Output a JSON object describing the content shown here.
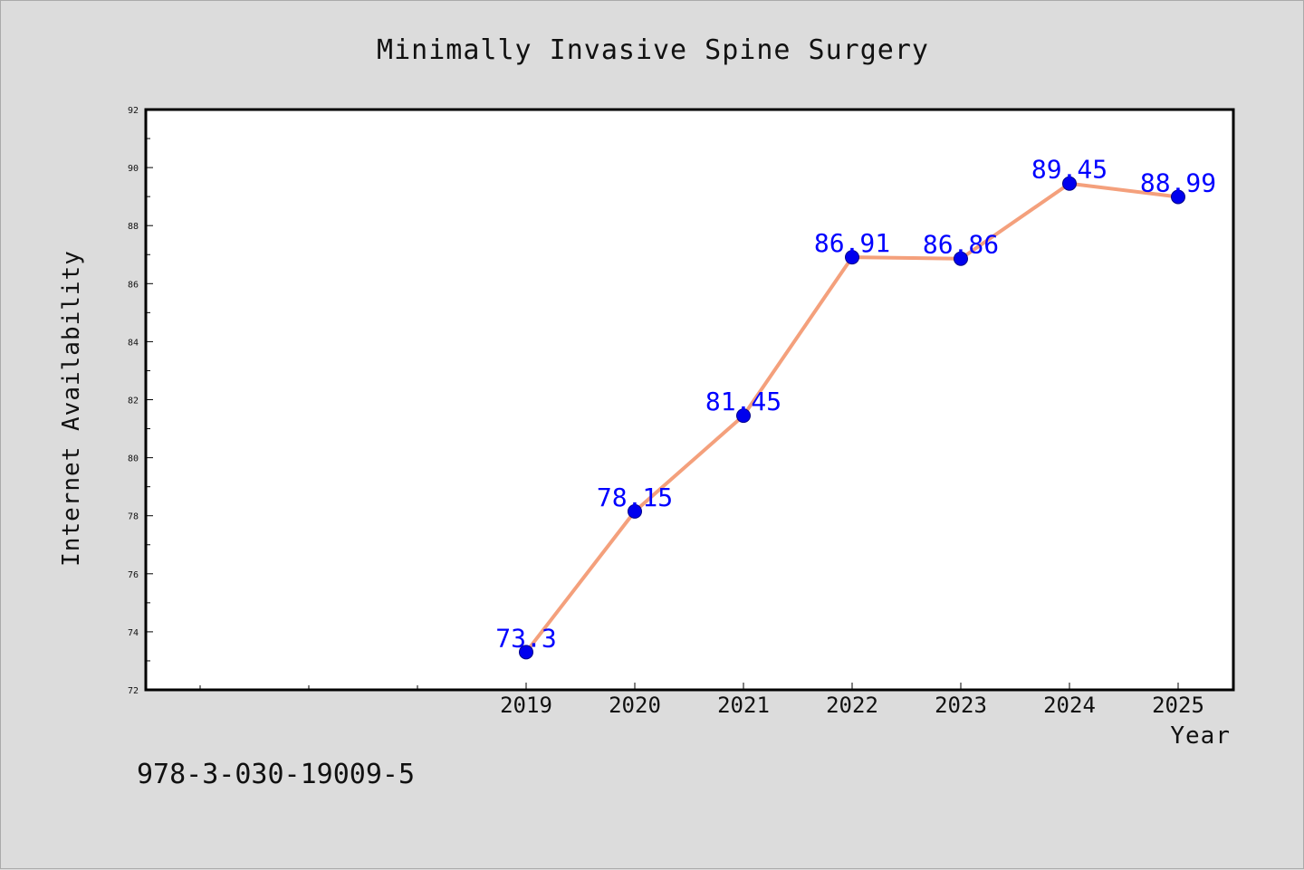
{
  "chart_data": {
    "type": "line",
    "title": "Minimally Invasive Spine Surgery",
    "xlabel": "Year",
    "ylabel": "Internet Availability",
    "categories": [
      "2019",
      "2020",
      "2021",
      "2022",
      "2023",
      "2024",
      "2025"
    ],
    "series": [
      {
        "values": [
          73.3,
          78.15,
          81.45,
          86.91,
          86.86,
          89.45,
          88.99
        ],
        "labels": [
          "73.3",
          "78.15",
          "81.45",
          "86.91",
          "86.86",
          "89.45",
          "88.99"
        ]
      }
    ],
    "ylim": [
      72,
      92
    ],
    "yticks": [
      "72",
      "74",
      "76",
      "78",
      "80",
      "82",
      "84",
      "86",
      "88",
      "90",
      "92"
    ],
    "grid": false,
    "legend": "none",
    "colors": {
      "line": "#f4a07c",
      "marker": "#0000ee",
      "data_label": "#0000ff",
      "background": "#dcdcdc",
      "plot_background": "#ffffff"
    }
  },
  "footer": {
    "isbn": "978-3-030-19009-5"
  }
}
